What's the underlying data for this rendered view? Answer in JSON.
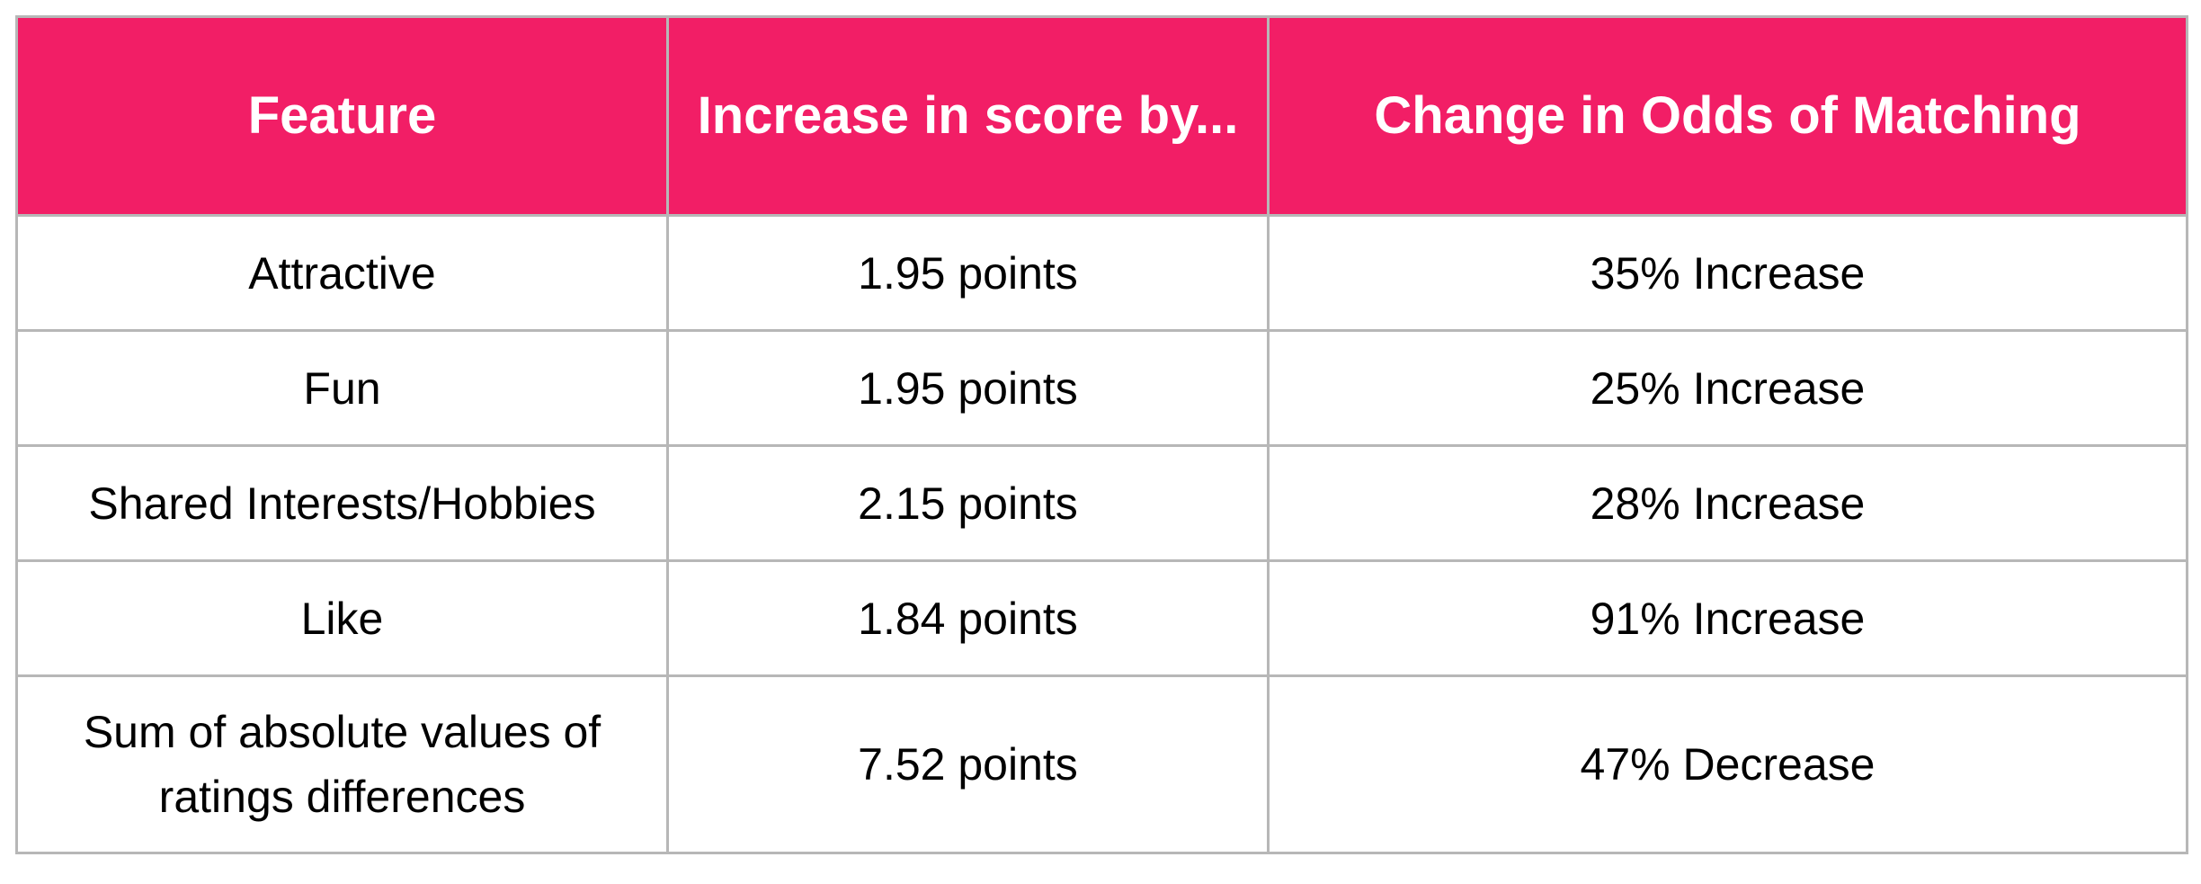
{
  "table": {
    "headers": [
      "Feature",
      "Increase in score by...",
      "Change in Odds of Matching"
    ],
    "rows": [
      [
        "Attractive",
        "1.95 points",
        "35% Increase"
      ],
      [
        "Fun",
        "1.95 points",
        "25% Increase"
      ],
      [
        "Shared Interests/Hobbies",
        "2.15 points",
        "28% Increase"
      ],
      [
        "Like",
        "1.84 points",
        "91% Increase"
      ],
      [
        "Sum of absolute values of ratings differences",
        "7.52 points",
        "47% Decrease"
      ]
    ]
  },
  "colors": {
    "header_background": "#f21e66",
    "header_text": "#ffffff",
    "grid_line": "#b7b7b7",
    "body_text": "#000000"
  }
}
